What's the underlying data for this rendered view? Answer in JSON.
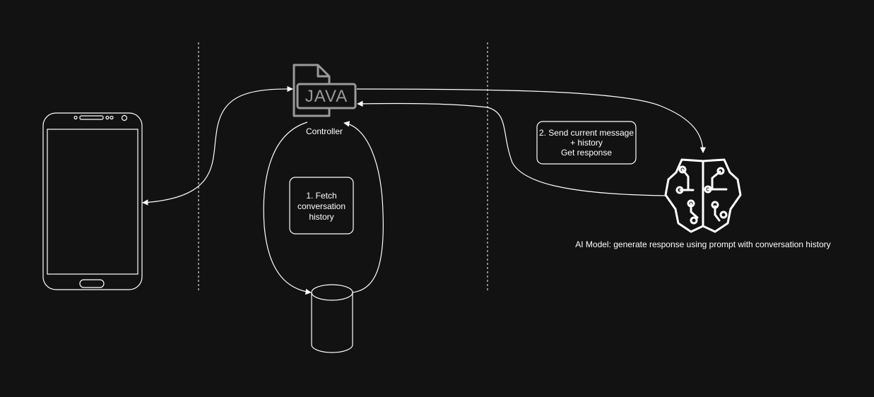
{
  "diagram": {
    "controller_label": "Controller",
    "java_badge_text": "JAVA",
    "step1": {
      "line1": "1. Fetch",
      "line2": "conversation",
      "line3": "history"
    },
    "step2": {
      "line1": "2. Send current message",
      "line2": "+ history",
      "line3": "Get response"
    },
    "ai_label": "AI Model: generate response using prompt with conversation history"
  },
  "icons": {
    "phone": "smartphone-icon",
    "java": "java-file-icon",
    "database": "database-cylinder-icon",
    "ai": "ai-brain-circuit-icon"
  },
  "colors": {
    "background": "#121212",
    "lines": "#ffffff",
    "java_icon": "#9a9a9a"
  }
}
